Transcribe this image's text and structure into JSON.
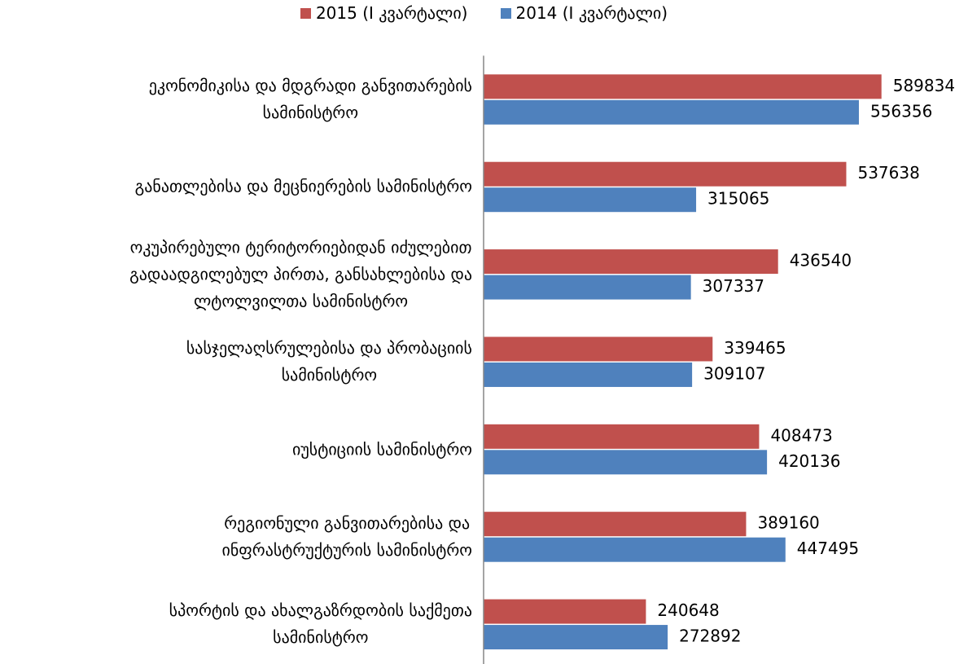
{
  "chart_data": {
    "type": "bar",
    "orientation": "horizontal",
    "categories": [
      "ეკონომიკისა და მდგრადი განვითარების\nსამინისტრო",
      "განათლებისა და მეცნიერების სამინისტრო",
      "ოკუპირებული ტერიტორიებიდან იძულებით\nგადაადგილებულ პირთა, განსახლებისა და\nლტოლვილთა სამინისტრო",
      "სასჯელაღსრულებისა და პრობაციის\nსამინისტრო",
      "იუსტიციის სამინისტრო",
      "რეგიონული განვითარებისა და\nინფრასტრუქტურის სამინისტრო",
      "სპორტის და ახალგაზრდობის საქმეთა\nსამინისტრო"
    ],
    "series": [
      {
        "name": "2015 (I კვარტალი)",
        "color": "#c0504d",
        "values": [
          589834,
          537638,
          436540,
          339465,
          408473,
          389160,
          240648
        ]
      },
      {
        "name": "2014 (I კვარტალი)",
        "color": "#4f81bd",
        "values": [
          556356,
          315065,
          307337,
          309107,
          420136,
          447495,
          272892
        ]
      }
    ],
    "xlim": [
      0,
      700000
    ],
    "legend": "top",
    "data_labels": true
  }
}
